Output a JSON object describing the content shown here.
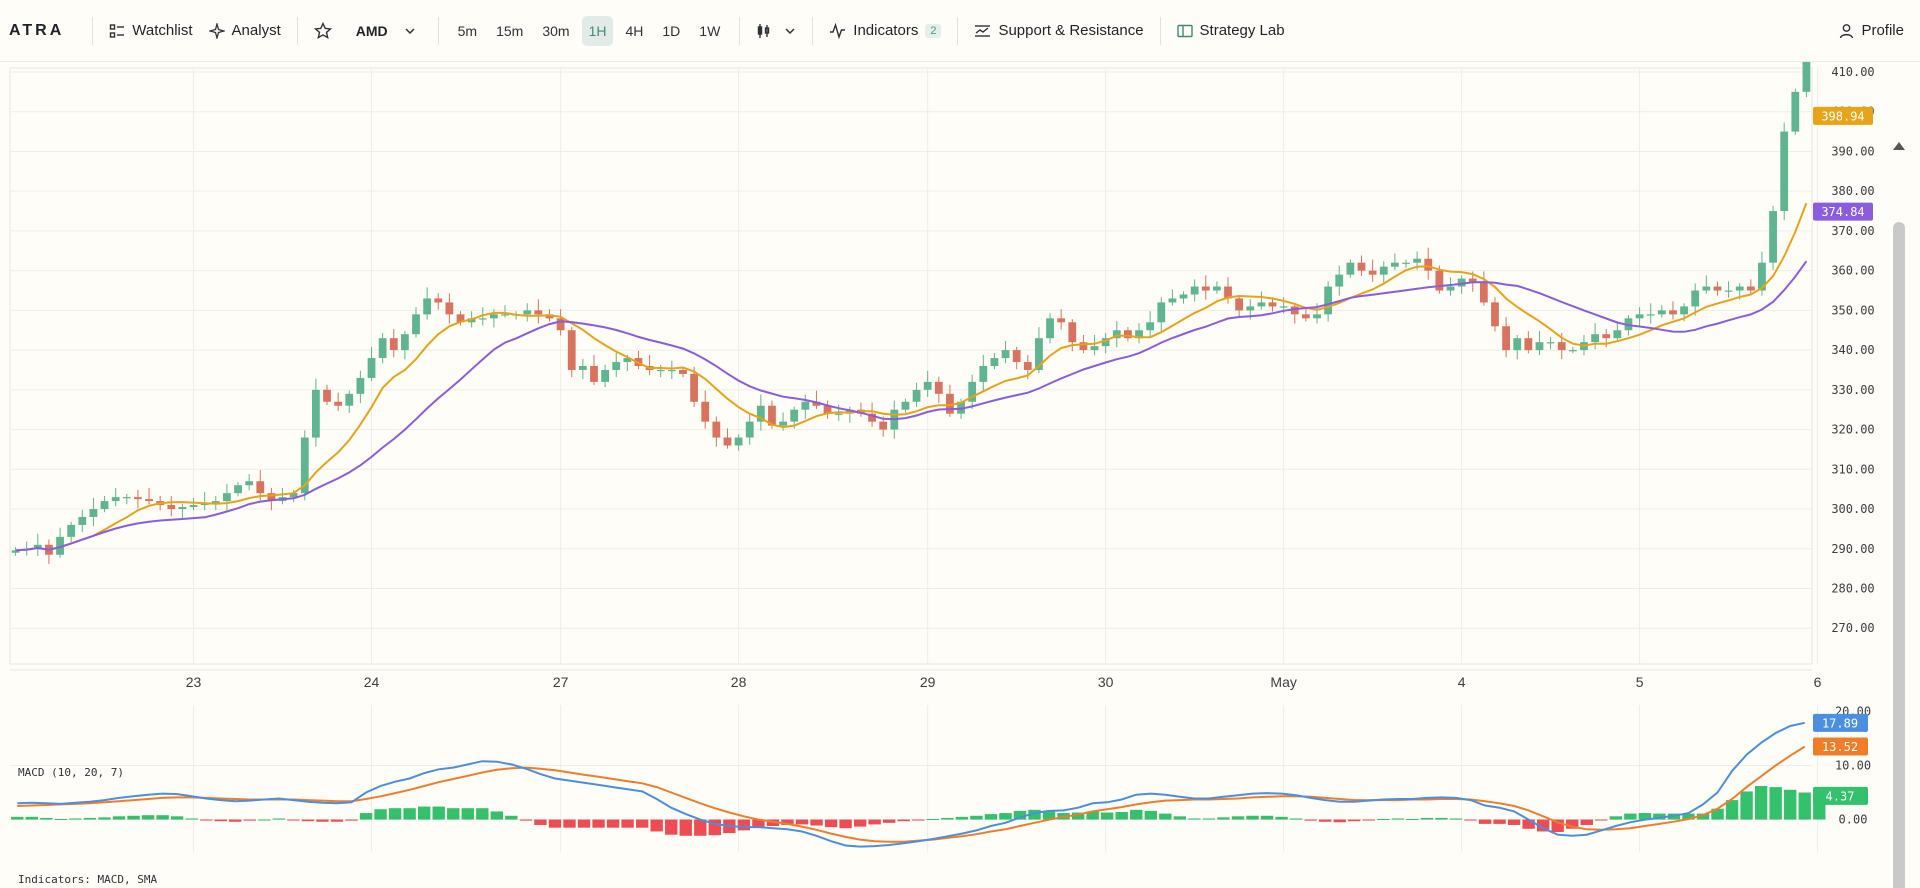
{
  "toolbar": {
    "logo": "ATRA",
    "watchlist_label": "Watchlist",
    "analyst_label": "Analyst",
    "symbol": "AMD",
    "timeframes": [
      "5m",
      "15m",
      "30m",
      "1H",
      "4H",
      "1D",
      "1W"
    ],
    "active_timeframe": "1H",
    "indicators_label": "Indicators",
    "indicators_count": "2",
    "support_resistance_label": "Support & Resistance",
    "strategy_lab_label": "Strategy Lab",
    "profile_label": "Profile"
  },
  "colors": {
    "up": "#5fb590",
    "down": "#d9735e",
    "sma_fast": "#e8a317",
    "sma_slow": "#8a5de0",
    "macd": "#4a8fe0",
    "signal": "#f07d2a",
    "hist_up": "#33c16b",
    "hist_down": "#ef4b52",
    "grid": "#eeede6",
    "axis_text": "#3a3d42"
  },
  "chart_data": [
    {
      "type": "candlestick",
      "x_tick_labels": [
        "23",
        "24",
        "27",
        "28",
        "29",
        "30",
        "May",
        "4",
        "5",
        "6"
      ],
      "y_ticks": [
        270,
        280,
        290,
        300,
        310,
        320,
        330,
        340,
        350,
        360,
        370,
        380,
        390,
        400,
        410
      ],
      "ylim": [
        261,
        410.5
      ],
      "last_price_labels": [
        {
          "value": "398.94",
          "color": "#e8a317"
        },
        {
          "value": "374.84",
          "color": "#8a5de0"
        }
      ],
      "closes": [
        289.6,
        290.0,
        291.0,
        288.5,
        293,
        296,
        298,
        300,
        302,
        303,
        303,
        302.5,
        302,
        301,
        300,
        300.5,
        301,
        301.5,
        302,
        304,
        306,
        307,
        304,
        302,
        303,
        304,
        318,
        330,
        327,
        326,
        329,
        333,
        338,
        343,
        340,
        344,
        349,
        353,
        352,
        349,
        347,
        348,
        348,
        349,
        349,
        349,
        350,
        349,
        348,
        345,
        335,
        336,
        332,
        335,
        337,
        338,
        336,
        335,
        335,
        335,
        334,
        327,
        322,
        318,
        316,
        318,
        322,
        326,
        321,
        322,
        325,
        327,
        326,
        324,
        324,
        325,
        324,
        322,
        320,
        325,
        327,
        330,
        332,
        329,
        324,
        327,
        332,
        336,
        338,
        340,
        337,
        335,
        343,
        348,
        347,
        342,
        340,
        341,
        343,
        345,
        343,
        345,
        347,
        352,
        353,
        354,
        356,
        355,
        356,
        353,
        350,
        351,
        352,
        351,
        351,
        349,
        348,
        349,
        356,
        359,
        362,
        360,
        359,
        361,
        362,
        362,
        363,
        360,
        355,
        356,
        358,
        357,
        352,
        346,
        340,
        343,
        340,
        342,
        342,
        340,
        340,
        342,
        344,
        343,
        345,
        348,
        349,
        349,
        350,
        349,
        351,
        355,
        356,
        355,
        355,
        356,
        355,
        362,
        375,
        395,
        405,
        413
      ]
    },
    {
      "type": "line",
      "title": "MACD (10, 20, 7)",
      "y_ticks": [
        0,
        10,
        20
      ],
      "y_tick_labels": [
        "0.00",
        "10.00",
        "20.00"
      ],
      "ylim": [
        -6,
        21
      ],
      "value_labels": [
        {
          "value": "17.89",
          "color": "#4a8fe0"
        },
        {
          "value": "13.52",
          "color": "#f07d2a"
        },
        {
          "value": "4.37",
          "color": "#33c16b"
        }
      ],
      "series": [
        {
          "name": "MACD",
          "values": [
            3.0,
            3.1,
            3.0,
            2.9,
            3.1,
            3.3,
            3.6,
            4.0,
            4.3,
            4.6,
            4.8,
            4.7,
            4.3,
            3.9,
            3.6,
            3.4,
            3.5,
            3.7,
            3.9,
            3.6,
            3.3,
            3.1,
            3.0,
            3.2,
            5.0,
            6.2,
            7.0,
            7.6,
            8.6,
            9.3,
            9.6,
            10.2,
            10.8,
            10.7,
            10.2,
            9.4,
            8.4,
            7.6,
            7.2,
            6.8,
            6.4,
            6.0,
            5.6,
            5.2,
            3.8,
            2.2,
            1.0,
            0.0,
            -0.8,
            -1.2,
            -1.4,
            -1.4,
            -1.6,
            -1.8,
            -2.2,
            -3.0,
            -4.0,
            -4.8,
            -5.0,
            -4.9,
            -4.7,
            -4.4,
            -4.0,
            -3.6,
            -3.1,
            -2.6,
            -2.0,
            -1.2,
            -0.6,
            0.4,
            1.2,
            1.6,
            1.7,
            2.2,
            3.0,
            3.2,
            3.7,
            4.6,
            4.8,
            4.6,
            4.2,
            3.9,
            3.9,
            4.2,
            4.5,
            4.8,
            4.9,
            4.8,
            4.5,
            4.0,
            3.6,
            3.3,
            3.3,
            3.5,
            3.7,
            3.8,
            3.8,
            4.0,
            4.1,
            4.0,
            3.6,
            2.6,
            2.2,
            1.5,
            0.0,
            -1.6,
            -2.8,
            -3.0,
            -2.8,
            -2.0,
            -1.2,
            -0.5,
            0.0,
            0.3,
            0.7,
            1.2,
            2.8,
            5.0,
            9.0,
            12.0,
            14.2,
            16.0,
            17.3,
            17.9
          ]
        },
        {
          "name": "Signal",
          "values": [
            2.5,
            2.6,
            2.7,
            2.8,
            2.9,
            3.0,
            3.2,
            3.4,
            3.6,
            3.8,
            4.0,
            4.1,
            4.1,
            4.0,
            3.9,
            3.8,
            3.7,
            3.7,
            3.7,
            3.7,
            3.6,
            3.5,
            3.4,
            3.4,
            3.8,
            4.3,
            4.9,
            5.5,
            6.2,
            6.9,
            7.5,
            8.1,
            8.7,
            9.2,
            9.5,
            9.6,
            9.4,
            9.1,
            8.7,
            8.3,
            7.9,
            7.5,
            7.1,
            6.7,
            6.0,
            5.0,
            4.0,
            3.0,
            2.1,
            1.3,
            0.6,
            0.0,
            -0.4,
            -0.8,
            -1.3,
            -1.9,
            -2.6,
            -3.2,
            -3.7,
            -4.0,
            -4.1,
            -4.1,
            -3.9,
            -3.7,
            -3.4,
            -3.1,
            -2.7,
            -2.2,
            -1.8,
            -1.2,
            -0.6,
            0.0,
            0.5,
            0.9,
            1.5,
            1.9,
            2.3,
            2.8,
            3.2,
            3.5,
            3.6,
            3.7,
            3.7,
            3.8,
            3.9,
            4.1,
            4.2,
            4.3,
            4.3,
            4.2,
            4.0,
            3.8,
            3.6,
            3.6,
            3.6,
            3.6,
            3.7,
            3.7,
            3.8,
            3.8,
            3.7,
            3.4,
            3.0,
            2.5,
            1.7,
            0.6,
            -0.5,
            -1.3,
            -1.8,
            -1.9,
            -1.8,
            -1.6,
            -1.2,
            -0.8,
            -0.4,
            0.1,
            0.8,
            2.0,
            3.8,
            6.0,
            8.0,
            10.0,
            11.8,
            13.5
          ]
        },
        {
          "name": "Histogram",
          "values": [
            0.5,
            0.5,
            0.3,
            0.1,
            0.2,
            0.3,
            0.4,
            0.6,
            0.7,
            0.8,
            0.8,
            0.6,
            0.2,
            -0.1,
            -0.3,
            -0.4,
            -0.2,
            0.0,
            0.2,
            -0.1,
            -0.3,
            -0.4,
            -0.4,
            -0.2,
            1.2,
            1.9,
            2.1,
            2.1,
            2.4,
            2.4,
            2.1,
            2.1,
            2.1,
            1.5,
            0.7,
            -0.2,
            -1.0,
            -1.5,
            -1.5,
            -1.5,
            -1.5,
            -1.5,
            -1.5,
            -1.5,
            -2.2,
            -2.8,
            -3.0,
            -3.0,
            -2.9,
            -2.5,
            -2.0,
            -1.4,
            -1.2,
            -1.0,
            -0.9,
            -1.1,
            -1.4,
            -1.6,
            -1.3,
            -0.9,
            -0.6,
            -0.3,
            -0.1,
            0.1,
            0.3,
            0.5,
            0.7,
            1.0,
            1.2,
            1.6,
            1.8,
            1.6,
            1.2,
            1.3,
            1.5,
            1.3,
            1.4,
            1.8,
            1.6,
            1.1,
            0.6,
            0.2,
            0.2,
            0.4,
            0.6,
            0.7,
            0.7,
            0.5,
            0.2,
            -0.2,
            -0.4,
            -0.5,
            -0.3,
            -0.1,
            0.1,
            0.2,
            0.1,
            0.3,
            0.3,
            0.2,
            -0.1,
            -0.8,
            -0.8,
            -1.0,
            -1.7,
            -2.2,
            -2.3,
            -1.7,
            -1.0,
            -0.1,
            0.6,
            1.1,
            1.2,
            1.1,
            1.1,
            1.1,
            1.1,
            2.0,
            3.6,
            5.2,
            6.2,
            6.0,
            5.5,
            5.0,
            4.37
          ]
        }
      ]
    }
  ],
  "footer_note": "Indicators: MACD, SMA"
}
